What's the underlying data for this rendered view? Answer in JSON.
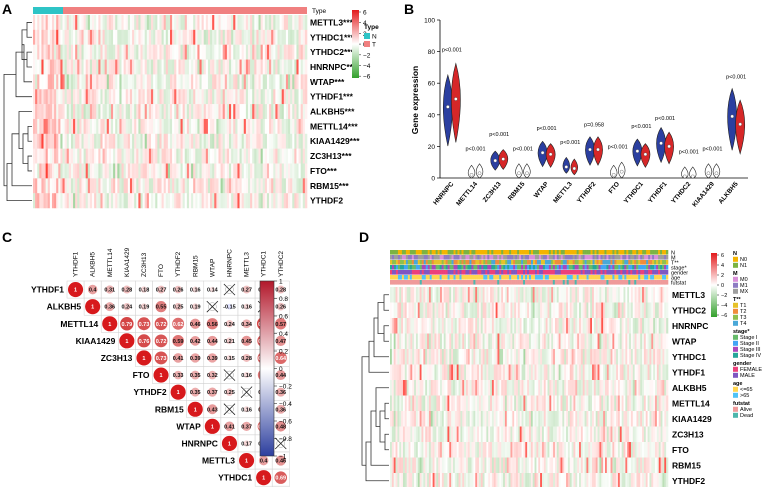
{
  "panels": {
    "A": "A",
    "B": "B",
    "C": "C",
    "D": "D"
  },
  "panelA": {
    "genes": [
      "METTL3***",
      "YTHDC1***",
      "YTHDC2***",
      "HNRNPC***",
      "WTAP***",
      "YTHDF1***",
      "ALKBH5***",
      "METTL14***",
      "KIAA1429***",
      "ZC3H13***",
      "FTO***",
      "RBM15***",
      "YTHDF2"
    ],
    "type_label": "Type",
    "legend_title": "Type",
    "legend_items": [
      {
        "label": "N",
        "color": "#2ec4c6"
      },
      {
        "label": "T",
        "color": "#f08080"
      }
    ],
    "color_ticks": [
      "6",
      "4",
      "2",
      "0",
      "−2",
      "−4",
      "−6"
    ]
  },
  "panelB": {
    "chart_data": {
      "type": "violin",
      "ylabel": "Gene expression",
      "ylim": [
        0,
        100
      ],
      "yticks": [
        "0",
        "20",
        "40",
        "60",
        "80",
        "100"
      ],
      "categories": [
        "HNRNPC",
        "METTL14",
        "ZC3H13",
        "RBM15",
        "WTAP",
        "METTL3",
        "YTHDF2",
        "FTO",
        "YTHDC1",
        "YTHDF1",
        "YTHDC2",
        "KIAA1429",
        "ALKBH5"
      ],
      "pvalues": [
        "p<0.001",
        "p<0.001",
        "p<0.001",
        "p<0.001",
        "p<0.001",
        "p<0.001",
        "p=0.958",
        "p<0.001",
        "p<0.001",
        "p<0.001",
        "p<0.001",
        "p<0.001",
        "p<0.001"
      ],
      "series": [
        {
          "color": "#2b3fa0",
          "medians": [
            45,
            2,
            11,
            3,
            16,
            7,
            18,
            2,
            17,
            22,
            1,
            3,
            39
          ]
        },
        {
          "color": "#d62728",
          "medians": [
            50,
            3,
            12,
            3,
            15,
            6,
            18,
            4,
            15,
            20,
            1,
            3,
            34
          ]
        }
      ]
    }
  },
  "panelC": {
    "genes": [
      "YTHDF1",
      "ALKBH5",
      "METTL14",
      "KIAA1429",
      "ZC3H13",
      "FTO",
      "YTHDF2",
      "RBM15",
      "WTAP",
      "HNRNPC",
      "METTL3",
      "YTHDC1",
      "YTHDC2"
    ],
    "matrix": [
      [
        "1",
        "0.4",
        "0.31",
        "0.28",
        "0.18",
        "0.27",
        "0.26",
        "0.16",
        "0.14",
        "X",
        "0.27",
        "0.36",
        "0.28"
      ],
      [
        "",
        "1",
        "0.36",
        "0.24",
        "0.19",
        "0.55",
        "0.25",
        "0.19",
        "X",
        "-0.15",
        "0.16",
        "X",
        "0.26"
      ],
      [
        "",
        "",
        "1",
        "0.79",
        "0.73",
        "0.72",
        "0.62",
        "0.46",
        "0.56",
        "0.24",
        "0.34",
        "0.79",
        "0.57"
      ],
      [
        "",
        "",
        "",
        "1",
        "0.76",
        "0.72",
        "0.59",
        "0.42",
        "0.44",
        "0.21",
        "0.45",
        "0.71",
        "0.47"
      ],
      [
        "",
        "",
        "",
        "",
        "1",
        "0.73",
        "0.41",
        "0.39",
        "0.39",
        "0.15",
        "0.28",
        "0.66",
        "0.64"
      ],
      [
        "",
        "",
        "",
        "",
        "",
        "1",
        "0.33",
        "0.35",
        "0.32",
        "X",
        "0.16",
        "0.6",
        "0.44"
      ],
      [
        "",
        "",
        "",
        "",
        "",
        "",
        "1",
        "0.35",
        "0.37",
        "0.25",
        "X",
        "0.35",
        "0.36"
      ],
      [
        "",
        "",
        "",
        "",
        "",
        "",
        "",
        "1",
        "0.43",
        "X",
        "0.16",
        "0.44",
        "0.36"
      ],
      [
        "",
        "",
        "",
        "",
        "",
        "",
        "",
        "",
        "1",
        "0.41",
        "0.37",
        "0.64",
        "0.48"
      ],
      [
        "",
        "",
        "",
        "",
        "",
        "",
        "",
        "",
        "",
        "1",
        "0.17",
        "0.29",
        "X"
      ],
      [
        "",
        "",
        "",
        "",
        "",
        "",
        "",
        "",
        "",
        "",
        "1",
        "0.4",
        "0.46"
      ],
      [
        "",
        "",
        "",
        "",
        "",
        "",
        "",
        "",
        "",
        "",
        "",
        "1",
        "0.69"
      ],
      [
        "",
        "",
        "",
        "",
        "",
        "",
        "",
        "",
        "",
        "",
        "",
        "",
        "1"
      ]
    ],
    "colorbar_ticks": [
      "1",
      "0.8",
      "0.6",
      "0.4",
      "0.2",
      "0",
      "−0.2",
      "−0.4",
      "−0.6",
      "−0.8",
      "−1"
    ]
  },
  "panelD": {
    "genes": [
      "METTL3",
      "YTHDC2",
      "HNRNPC",
      "WTAP",
      "YTHDC1",
      "YTHDF1",
      "ALKBH5",
      "METTL14",
      "KIAA1429",
      "ZC3H13",
      "FTO",
      "RBM15",
      "YTHDF2"
    ],
    "annotation_tracks": [
      "N",
      "M",
      "T**",
      "stage*",
      "gender",
      "age",
      "futstat"
    ],
    "color_ticks": [
      "6",
      "4",
      "2",
      "0",
      "−2",
      "−4",
      "−6"
    ],
    "legend": [
      {
        "title": "N",
        "items": [
          {
            "label": "N0",
            "color": "#f4b400"
          },
          {
            "label": "N1",
            "color": "#7cb342"
          }
        ]
      },
      {
        "title": "M",
        "items": [
          {
            "label": "M0",
            "color": "#d98fd9"
          },
          {
            "label": "M1",
            "color": "#8e7cc3"
          },
          {
            "label": "MX",
            "color": "#9e9e9e"
          }
        ]
      },
      {
        "title": "T**",
        "items": [
          {
            "label": "T1",
            "color": "#e6c229"
          },
          {
            "label": "T2",
            "color": "#f08c3c"
          },
          {
            "label": "T3",
            "color": "#8fbf4f"
          },
          {
            "label": "T4",
            "color": "#4aa8d8"
          }
        ]
      },
      {
        "title": "stage*",
        "items": [
          {
            "label": "Stage I",
            "color": "#66bb6a"
          },
          {
            "label": "Stage II",
            "color": "#42a5f5"
          },
          {
            "label": "Stage III",
            "color": "#ab47bc"
          },
          {
            "label": "Stage IV",
            "color": "#26a69a"
          }
        ]
      },
      {
        "title": "gender",
        "items": [
          {
            "label": "FEMALE",
            "color": "#ec407a"
          },
          {
            "label": "MALE",
            "color": "#7e57c2"
          }
        ]
      },
      {
        "title": "age",
        "items": [
          {
            "label": "<=65",
            "color": "#ffd54f"
          },
          {
            "label": ">65",
            "color": "#4fc3f7"
          }
        ]
      },
      {
        "title": "futstat",
        "items": [
          {
            "label": "Alive",
            "color": "#ef9a9a"
          },
          {
            "label": "Dead",
            "color": "#4db6ac"
          }
        ]
      }
    ]
  }
}
